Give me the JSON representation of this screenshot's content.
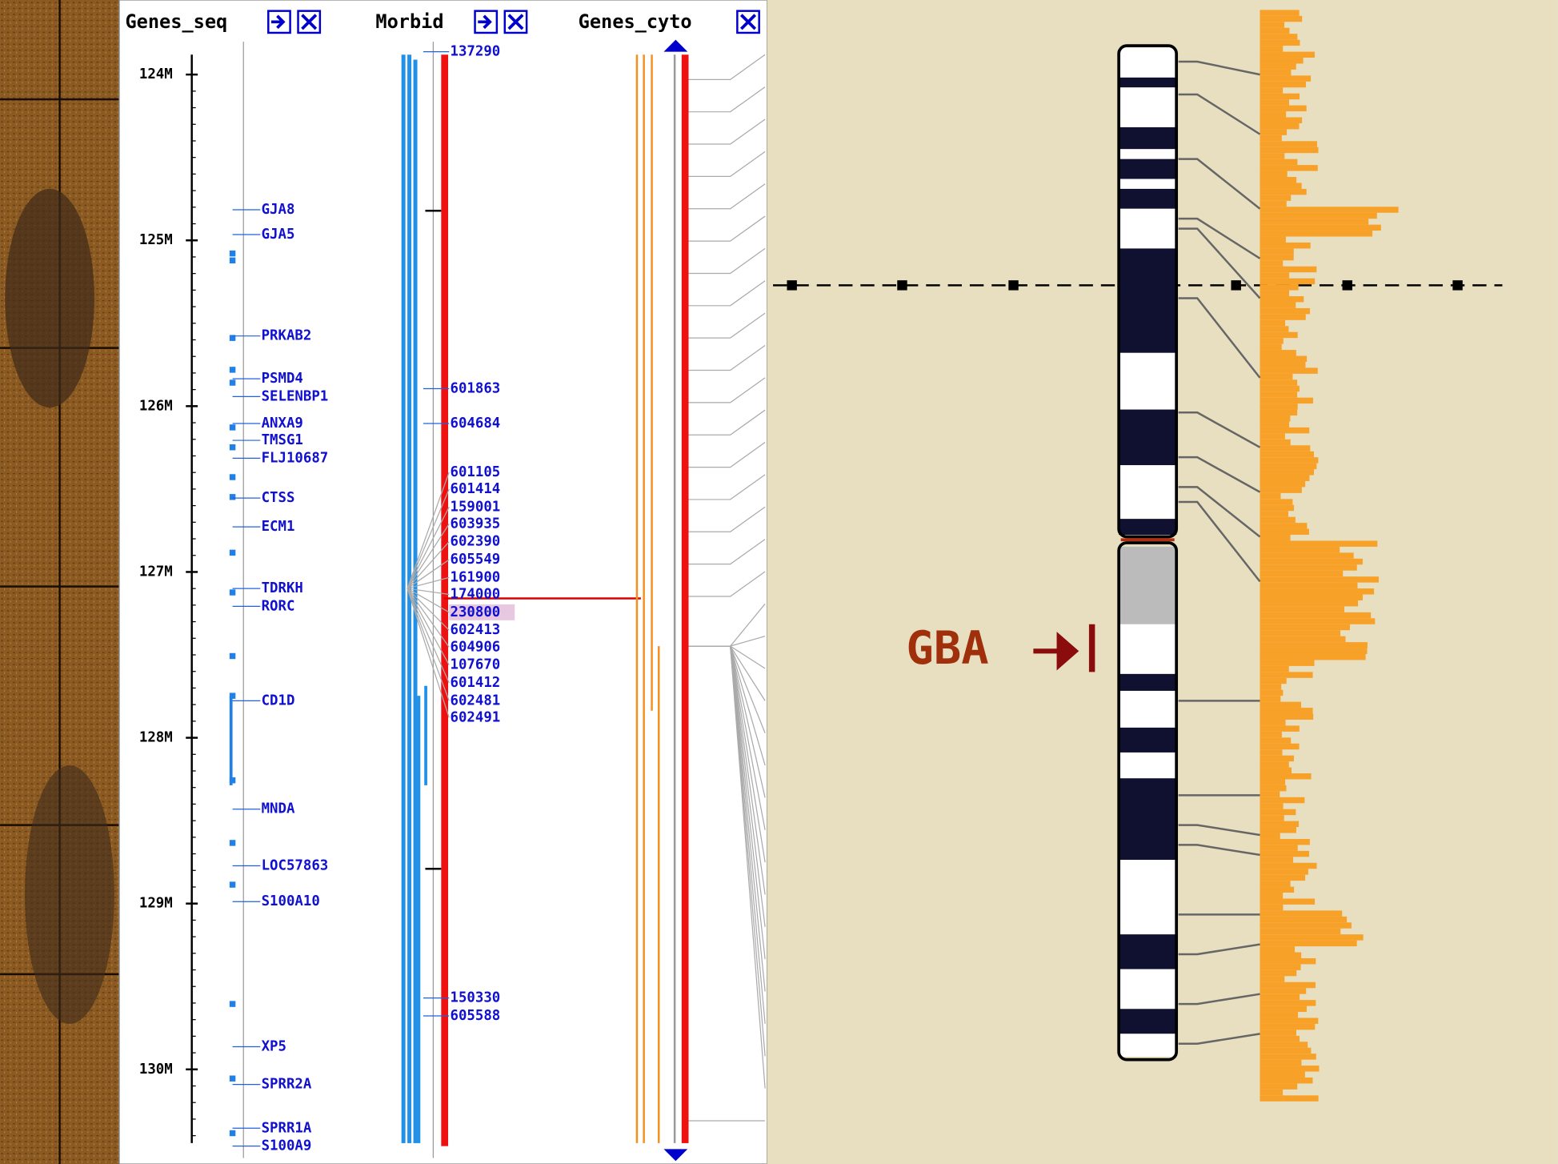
{
  "headers": {
    "genes_seq": "Genes_seq",
    "morbid": "Morbid",
    "genes_cyto": "Genes_cyto"
  },
  "ruler": [
    "124M",
    "125M",
    "126M",
    "127M",
    "128M",
    "129M",
    "130M"
  ],
  "genes": [
    "GJA8",
    "GJA5",
    "PRKAB2",
    "PSMD4",
    "SELENBP1",
    "ANXA9",
    "TMSG1",
    "FLJ10687",
    "CTSS",
    "ECM1",
    "TDRKH",
    "RORC",
    "CD1D",
    "MNDA",
    "LOC57863",
    "S100A10",
    "XP5",
    "SPRR2A",
    "SPRR1A",
    "S100A9"
  ],
  "morbid": [
    "137290",
    "601863",
    "604684",
    "601105",
    "601414",
    "159001",
    "603935",
    "602390",
    "605549",
    "161900",
    "174000",
    "230800",
    "602413",
    "604906",
    "107670",
    "601412",
    "602481",
    "602491",
    "150330",
    "605588"
  ],
  "annotation": "GBA"
}
